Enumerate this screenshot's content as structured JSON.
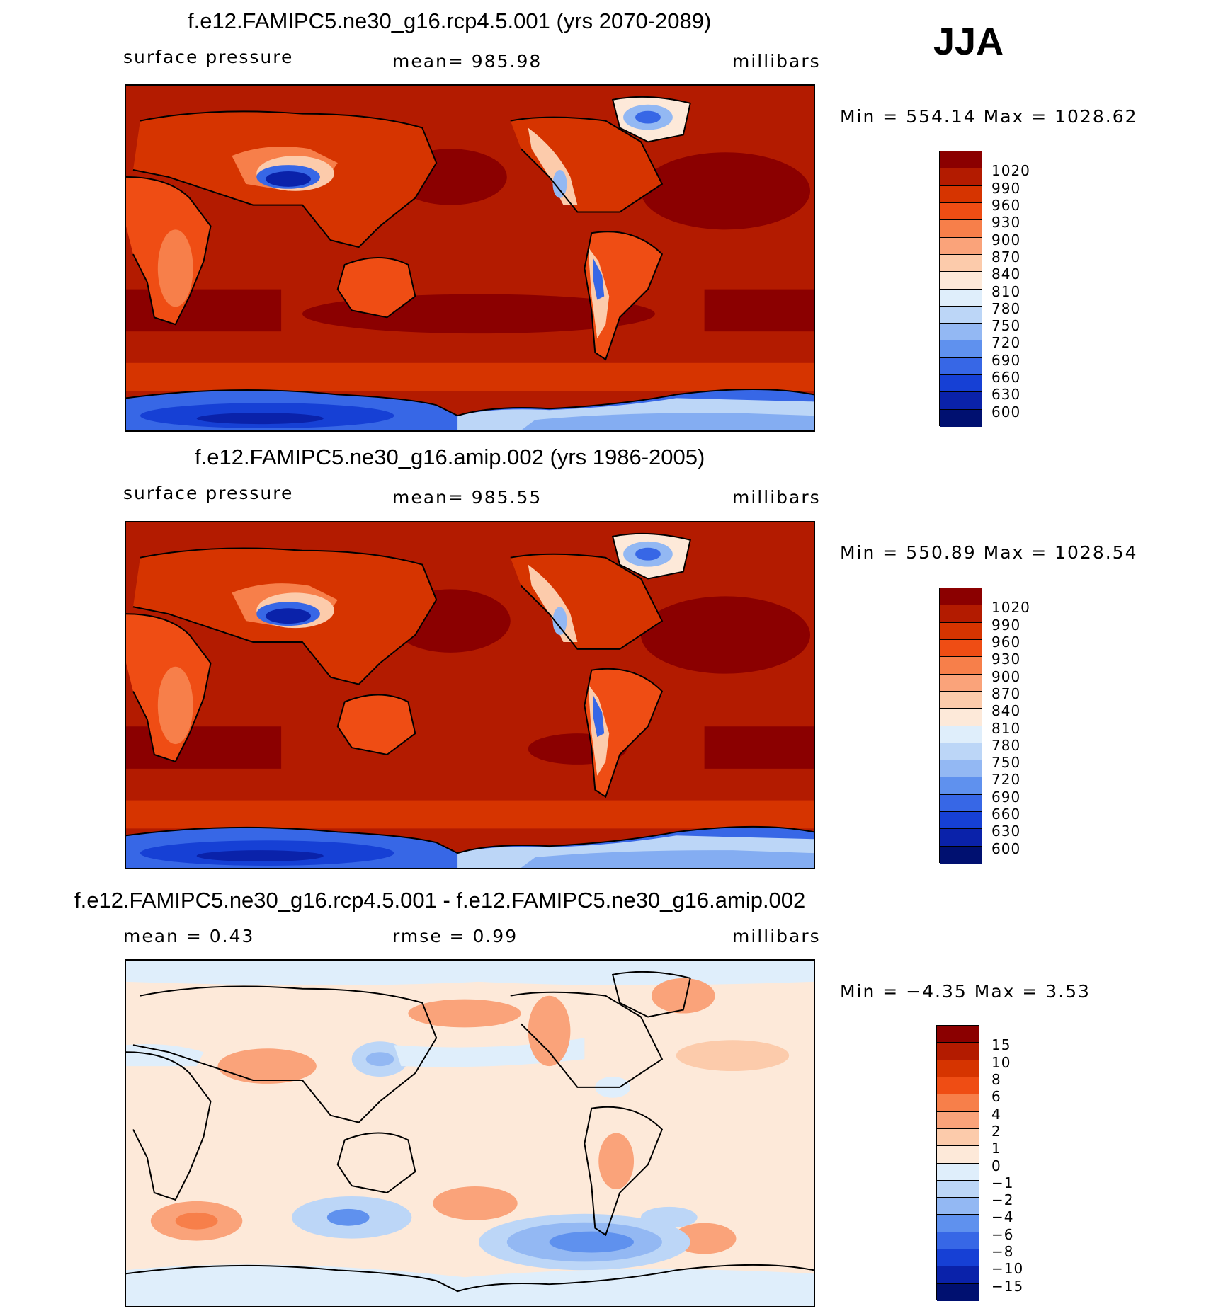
{
  "season": "JJA",
  "panels": [
    {
      "title": "f.e12.FAMIPC5.ne30_g16.rcp4.5.001 (yrs 2070-2089)",
      "left_label": "surface pressure",
      "center_label": "mean= 985.98",
      "units": "millibars",
      "minmax": "Min = 554.14 Max = 1028.62"
    },
    {
      "title": "f.e12.FAMIPC5.ne30_g16.amip.002 (yrs 1986-2005)",
      "left_label": "surface pressure",
      "center_label": "mean= 985.55",
      "units": "millibars",
      "minmax": "Min = 550.89 Max = 1028.54"
    },
    {
      "title": "f.e12.FAMIPC5.ne30_g16.rcp4.5.001 - f.e12.FAMIPC5.ne30_g16.amip.002",
      "left_label": "mean =    0.43",
      "center_label": "rmse =    0.99",
      "units": "millibars",
      "minmax": "Min =   −4.35 Max =    3.53"
    }
  ],
  "colorbars": {
    "absolute": {
      "levels": [
        "1020",
        "990",
        "960",
        "930",
        "900",
        "870",
        "840",
        "810",
        "780",
        "750",
        "720",
        "690",
        "660",
        "630",
        "600"
      ],
      "colors": [
        "#8b0000",
        "#b31b00",
        "#d63400",
        "#ef4d14",
        "#f77f4a",
        "#faa37a",
        "#fccbab",
        "#fde9d9",
        "#dfeefb",
        "#bcd6f7",
        "#93b8f3",
        "#5f91ee",
        "#3767e6",
        "#1640d5",
        "#0a22aa",
        "#001070"
      ]
    },
    "difference": {
      "levels": [
        "15",
        "10",
        "8",
        "6",
        "4",
        "2",
        "1",
        "0",
        "−1",
        "−2",
        "−4",
        "−6",
        "−8",
        "−10",
        "−15"
      ],
      "colors": [
        "#8b0000",
        "#b31b00",
        "#d63400",
        "#ef4d14",
        "#f77f4a",
        "#faa37a",
        "#fccbab",
        "#fde9d9",
        "#dfeefb",
        "#bcd6f7",
        "#93b8f3",
        "#5f91ee",
        "#3767e6",
        "#1640d5",
        "#0a22aa",
        "#001070"
      ]
    }
  }
}
